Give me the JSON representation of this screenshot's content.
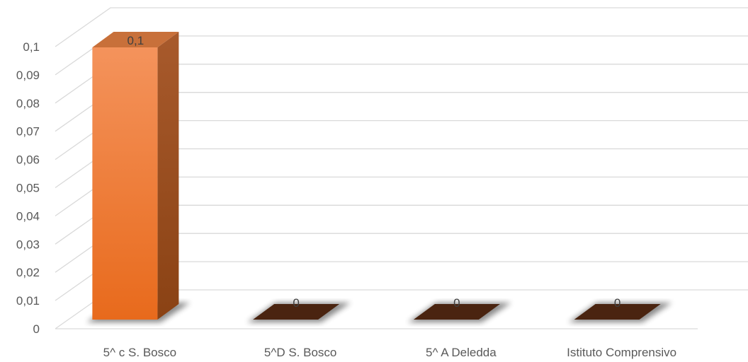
{
  "chart_data": {
    "type": "bar",
    "style": "3d-column",
    "categories": [
      "5^ c S. Bosco",
      "5^D S. Bosco",
      "5^ A Deledda",
      "Istituto Comprensivo"
    ],
    "values": [
      0.1,
      0,
      0,
      0
    ],
    "data_labels": [
      "0,1",
      "0",
      "0",
      "0"
    ],
    "y_ticks": [
      "0",
      "0,01",
      "0,02",
      "0,03",
      "0,04",
      "0,05",
      "0,06",
      "0,07",
      "0,08",
      "0,09",
      "0,1"
    ],
    "ylim": [
      0,
      0.1
    ],
    "grid": true,
    "legend": "none",
    "colors": {
      "bar_front_top": "#f4935c",
      "bar_front_bottom": "#e86a1c",
      "bar_side": "#a0501c",
      "bar_top": "#c8703a",
      "zero_bar": "#4a2410",
      "grid": "#d9d9d9"
    }
  }
}
